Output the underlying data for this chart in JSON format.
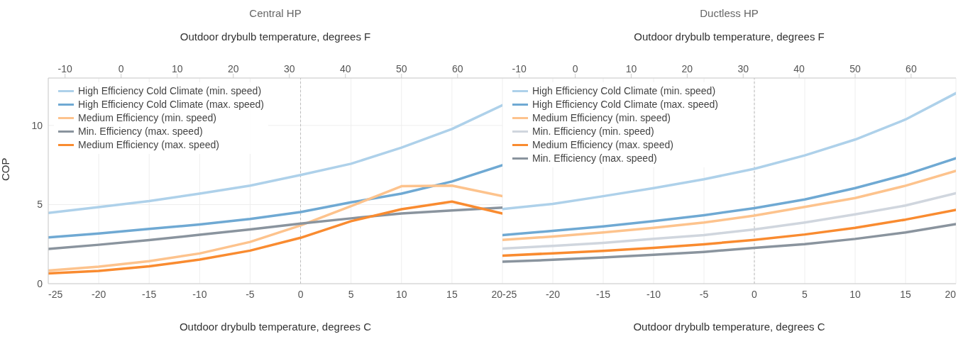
{
  "chart_data": [
    {
      "type": "line",
      "title": "Central HP",
      "xlabel": "Outdoor drybulb temperature, degrees C",
      "x2label": "Outdoor drybulb temperature, degrees F",
      "ylabel": "COP",
      "legend": "top left",
      "xlim": [
        -25,
        20
      ],
      "xticks": [
        -25,
        -20,
        -15,
        -10,
        -5,
        0,
        5,
        10,
        15,
        20
      ],
      "x2lim": [
        -13,
        68
      ],
      "x2ticks": [
        -10,
        0,
        10,
        20,
        30,
        40,
        50,
        60
      ],
      "ylim": [
        0,
        13
      ],
      "yticks": [
        0,
        5,
        10
      ],
      "grid": true,
      "marker": "none",
      "line_style": "solid",
      "x": [
        -25,
        -20,
        -15,
        -10,
        -5,
        0,
        5,
        10,
        15,
        20
      ],
      "ref_lines": [
        {
          "axis": "x",
          "value": 0,
          "color": "#bbbbbb",
          "line_style": "dashed"
        }
      ],
      "series": [
        {
          "name": "High Efficiency Cold Climate (min. speed)",
          "color": "#aed1ea",
          "values": [
            4.47,
            4.84,
            5.22,
            5.69,
            6.2,
            6.87,
            7.58,
            8.6,
            9.78,
            11.28
          ]
        },
        {
          "name": "High Efficiency Cold Climate (max. speed)",
          "color": "#6fa9d3",
          "values": [
            2.93,
            3.17,
            3.46,
            3.74,
            4.09,
            4.53,
            5.14,
            5.69,
            6.46,
            7.49
          ]
        },
        {
          "name": "Medium Efficiency (min. speed)",
          "color": "#fdc38d",
          "values": [
            0.83,
            1.08,
            1.42,
            1.91,
            2.64,
            3.68,
            4.9,
            6.16,
            6.2,
            5.53
          ]
        },
        {
          "name": "Min. Efficiency (max. speed)",
          "color": "#8a949e",
          "values": [
            2.2,
            2.46,
            2.76,
            3.09,
            3.43,
            3.8,
            4.13,
            4.44,
            4.63,
            4.81
          ]
        },
        {
          "name": "Medium Efficiency (max. speed)",
          "color": "#f98b30",
          "values": [
            0.65,
            0.81,
            1.1,
            1.52,
            2.09,
            2.9,
            3.95,
            4.71,
            5.19,
            4.44
          ]
        }
      ]
    },
    {
      "type": "line",
      "title": "Ductless HP",
      "xlabel": "Outdoor drybulb temperature, degrees C",
      "x2label": "Outdoor drybulb temperature, degrees F",
      "xlim": [
        -25,
        20
      ],
      "xticks": [
        -25,
        -20,
        -15,
        -10,
        -5,
        0,
        5,
        10,
        15,
        20
      ],
      "x2lim": [
        -13,
        68
      ],
      "x2ticks": [
        -10,
        0,
        10,
        20,
        30,
        40,
        50,
        60
      ],
      "ylim": [
        0,
        13
      ],
      "yticks": [
        0,
        5,
        10
      ],
      "grid": true,
      "legend": "top left",
      "marker": "none",
      "line_style": "solid",
      "tick_labels": "x",
      "x": [
        -25,
        -20,
        -15,
        -10,
        -5,
        0,
        5,
        10,
        15,
        20
      ],
      "ref_lines": [
        {
          "axis": "x",
          "value": 0,
          "color": "#bbbbbb",
          "line_style": "dashed"
        }
      ],
      "series": [
        {
          "name": "High Efficiency Cold Climate (min. speed)",
          "color": "#aed1ea",
          "values": [
            4.72,
            5.04,
            5.53,
            6.04,
            6.6,
            7.26,
            8.11,
            9.11,
            10.38,
            12.04
          ]
        },
        {
          "name": "High Efficiency Cold Climate (max. speed)",
          "color": "#6fa9d3",
          "values": [
            3.07,
            3.34,
            3.62,
            3.96,
            4.33,
            4.77,
            5.32,
            6.04,
            6.89,
            7.93
          ]
        },
        {
          "name": "Medium Efficiency (min. speed)",
          "color": "#fdc38d",
          "values": [
            2.77,
            2.98,
            3.24,
            3.53,
            3.87,
            4.3,
            4.85,
            5.41,
            6.19,
            7.13
          ]
        },
        {
          "name": "Min. Efficiency (min. speed)",
          "color": "#d0d6de",
          "values": [
            2.22,
            2.39,
            2.58,
            2.83,
            3.07,
            3.43,
            3.87,
            4.38,
            4.94,
            5.72
          ]
        },
        {
          "name": "Medium Efficiency (max. speed)",
          "color": "#f98b30",
          "values": [
            1.77,
            1.92,
            2.07,
            2.26,
            2.49,
            2.77,
            3.11,
            3.53,
            4.05,
            4.66
          ]
        },
        {
          "name": "Min. Efficiency (max. speed)",
          "color": "#8a949e",
          "values": [
            1.39,
            1.51,
            1.66,
            1.83,
            2.01,
            2.26,
            2.5,
            2.83,
            3.24,
            3.77
          ]
        }
      ]
    }
  ]
}
